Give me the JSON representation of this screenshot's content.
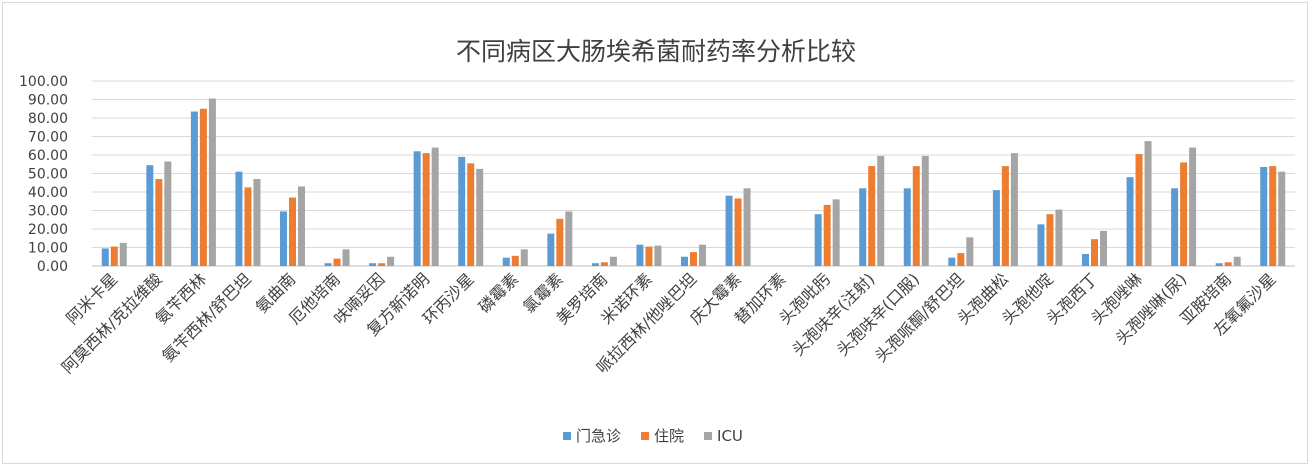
{
  "chart_data": {
    "type": "bar",
    "title": "不同病区大肠埃希菌耐药率分析比较",
    "categories": [
      "阿米卡星",
      "阿莫西林/克拉维酸",
      "氨苄西林",
      "氨苄西林/舒巴坦",
      "氨曲南",
      "厄他培南",
      "呋喃妥因",
      "复方新诺明",
      "环丙沙星",
      "磷霉素",
      "氯霉素",
      "美罗培南",
      "米诺环素",
      "哌拉西林/他唑巴坦",
      "庆大霉素",
      "替加环素",
      "头孢吡肟",
      "头孢呋辛(注射)",
      "头孢呋辛(口服)",
      "头孢哌酮/舒巴坦",
      "头孢曲松",
      "头孢他啶",
      "头孢西丁",
      "头孢唑啉",
      "头孢唑啉(尿)",
      "亚胺培南",
      "左氧氟沙星"
    ],
    "series": [
      {
        "name": "门急诊",
        "color": "#5b9bd5",
        "values": [
          9.5,
          54.5,
          83.5,
          51,
          29.5,
          1.5,
          1.5,
          62,
          59,
          4.5,
          17.5,
          1.5,
          11.5,
          5,
          38,
          0,
          28,
          42,
          42,
          4.5,
          41,
          22.5,
          6.5,
          48,
          42,
          1.5,
          53.5
        ]
      },
      {
        "name": "住院",
        "color": "#ed7d31",
        "values": [
          10.5,
          47,
          85,
          42.5,
          37,
          4,
          1.5,
          61,
          55.5,
          5.5,
          25.5,
          2,
          10.5,
          7.5,
          36.5,
          0,
          33,
          54,
          54,
          7,
          54,
          28,
          14.5,
          60.5,
          56,
          2,
          54
        ]
      },
      {
        "name": "ICU",
        "color": "#a5a5a5",
        "values": [
          12.5,
          56.5,
          90.5,
          47,
          43,
          9,
          5,
          64,
          52.5,
          9,
          29.5,
          5,
          11,
          11.5,
          42,
          0,
          36,
          59.5,
          59.5,
          15.5,
          61,
          30.5,
          19,
          67.5,
          64,
          5,
          51
        ]
      }
    ],
    "y_ticks": [
      "0.00",
      "10.00",
      "20.00",
      "30.00",
      "40.00",
      "50.00",
      "60.00",
      "70.00",
      "80.00",
      "90.00",
      "100.00"
    ],
    "ylim": [
      0,
      100
    ],
    "grid": true,
    "legend_position": "bottom"
  }
}
